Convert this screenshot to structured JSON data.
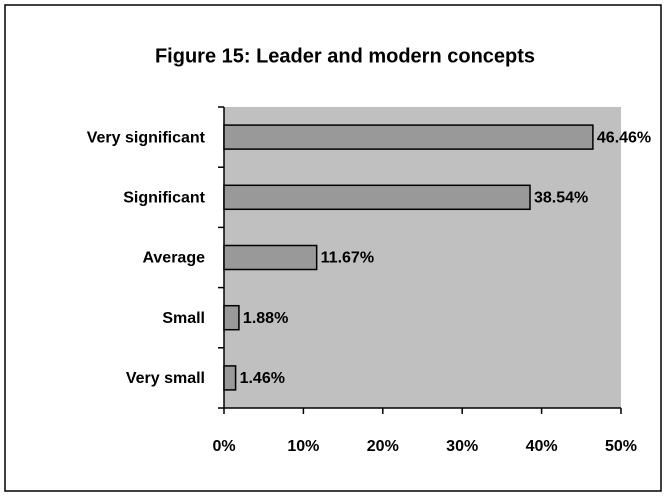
{
  "chart_data": {
    "type": "bar",
    "orientation": "horizontal",
    "title": "Figure 15:  Leader and modern concepts",
    "categories": [
      "Very significant",
      "Significant",
      "Average",
      "Small",
      "Very small"
    ],
    "values": [
      46.46,
      38.54,
      11.67,
      1.88,
      1.46
    ],
    "value_labels": [
      "46.46%",
      "38.54%",
      "11.67%",
      "1.88%",
      "1.46%"
    ],
    "color": "#999999",
    "background": "#c0c0c0",
    "xlim": [
      0,
      50
    ],
    "xticks": [
      {
        "value": 0,
        "label": "0%"
      },
      {
        "value": 10,
        "label": "10%"
      },
      {
        "value": 20,
        "label": "20%"
      },
      {
        "value": 30,
        "label": "30%"
      },
      {
        "value": 40,
        "label": "40%"
      },
      {
        "value": 50,
        "label": "50%"
      }
    ]
  }
}
